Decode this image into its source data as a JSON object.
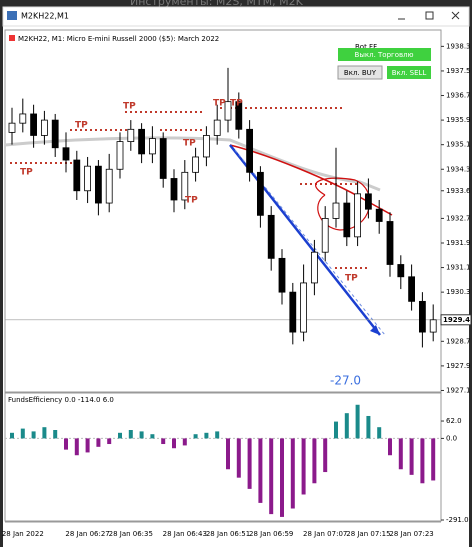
{
  "window_caption": "Инструменты: M2S, MTM, M2K",
  "window_title": "M2KH22,M1",
  "chart_header": "M2KH22, M1:  Micro E-mini Russell 2000 ($5): March 2022",
  "panel": {
    "label": "Bot FF",
    "buttons": [
      "Выкл. Торговлю",
      "Вкл. BUY",
      "Вкл. SELL"
    ]
  },
  "annotation": "-27.0",
  "tp_labels": [
    "TP",
    "TP",
    "TP",
    "TP",
    "TP",
    "TP",
    "TP",
    "TP"
  ],
  "chart_data": {
    "type": "candlestick",
    "categories": [
      null,
      "28 Jan 2022",
      null,
      null,
      null,
      null,
      null,
      "28 Jan 06:27",
      null,
      null,
      null,
      "28 Jan 06:35",
      null,
      null,
      null,
      null,
      "28 Jan 06:43",
      null,
      null,
      null,
      "28 Jan 06:51",
      null,
      null,
      null,
      "28 Jan 06:59",
      null,
      null,
      null,
      null,
      "28 Jan 07:07",
      null,
      null,
      null,
      "28 Jan 07:15",
      null,
      null,
      null,
      "28 Jan 07:23",
      null,
      null
    ],
    "open": [
      1935.5,
      1935.8,
      1936.1,
      1935.4,
      1935.9,
      1935.0,
      1934.6,
      1933.6,
      1934.4,
      1933.2,
      1934.3,
      1935.2,
      1935.6,
      1934.8,
      1935.3,
      1934.0,
      1933.3,
      1934.2,
      1934.7,
      1935.4,
      1935.9,
      1936.5,
      1935.6,
      1934.2,
      1932.8,
      1931.4,
      1930.3,
      1929.0,
      1930.6,
      1931.6,
      1932.7,
      1933.2,
      1932.1,
      1933.5,
      1933.0,
      1932.6,
      1931.2,
      1930.8,
      1930.0,
      1929.0
    ],
    "high": [
      1936.3,
      1936.6,
      1936.4,
      1936.2,
      1936.1,
      1935.5,
      1934.9,
      1934.7,
      1934.6,
      1934.8,
      1935.5,
      1935.9,
      1935.8,
      1935.7,
      1935.5,
      1934.3,
      1934.6,
      1935.0,
      1935.7,
      1936.4,
      1937.6,
      1936.8,
      1935.9,
      1934.4,
      1933.1,
      1931.7,
      1930.6,
      1931.2,
      1932.0,
      1933.1,
      1935.0,
      1933.6,
      1933.9,
      1934.0,
      1933.3,
      1932.9,
      1931.5,
      1931.2,
      1930.3,
      1929.9
    ],
    "low": [
      1935.1,
      1935.5,
      1935.0,
      1935.1,
      1934.7,
      1934.2,
      1933.3,
      1933.2,
      1932.8,
      1932.9,
      1934.0,
      1934.9,
      1934.5,
      1934.5,
      1933.7,
      1932.9,
      1933.0,
      1933.9,
      1934.4,
      1935.1,
      1935.5,
      1935.3,
      1933.9,
      1932.4,
      1931.0,
      1929.9,
      1928.6,
      1928.7,
      1930.2,
      1931.3,
      1932.4,
      1931.8,
      1931.8,
      1932.7,
      1932.2,
      1930.8,
      1930.4,
      1929.7,
      1928.5,
      1928.7
    ],
    "close": [
      1935.8,
      1936.1,
      1935.4,
      1935.9,
      1935.0,
      1934.6,
      1933.6,
      1934.4,
      1933.2,
      1934.3,
      1935.2,
      1935.6,
      1934.8,
      1935.3,
      1934.0,
      1933.3,
      1934.2,
      1934.7,
      1935.4,
      1935.9,
      1936.5,
      1935.6,
      1934.2,
      1932.8,
      1931.4,
      1930.3,
      1929.0,
      1930.6,
      1931.6,
      1932.7,
      1933.2,
      1932.1,
      1933.5,
      1933.0,
      1932.6,
      1931.2,
      1930.8,
      1930.0,
      1929.0,
      1929.4
    ],
    "ylim": [
      1927.05,
      1938.8
    ],
    "yticks": [
      1938.3,
      1937.5,
      1936.7,
      1935.9,
      1935.1,
      1934.3,
      1933.6,
      1932.7,
      1931.9,
      1931.1,
      1930.3,
      1928.7,
      1927.9,
      1927.1
    ],
    "last_price": {
      "value": 1929.4,
      "label": "1929.4"
    },
    "indicator": {
      "title": "FundsEfficiency 0.0 -114.0 6.0",
      "type": "bar",
      "values": [
        20,
        35,
        25,
        40,
        30,
        -40,
        -60,
        -50,
        -30,
        -20,
        20,
        30,
        25,
        15,
        -20,
        -35,
        -25,
        15,
        20,
        25,
        -110,
        -140,
        -180,
        -230,
        -270,
        -280,
        -250,
        -200,
        -160,
        -120,
        60,
        90,
        120,
        80,
        40,
        -60,
        -110,
        -130,
        -160,
        -150
      ],
      "colors": {
        "up": "#1a8a8a",
        "down": "#8b1a8b"
      },
      "ylim": [
        -291,
        137
      ],
      "yticks": [
        {
          "value": 62,
          "label": "62.0"
        },
        {
          "value": 0,
          "label": "0.0"
        },
        {
          "value": -291,
          "label": "-291.0"
        }
      ]
    }
  }
}
